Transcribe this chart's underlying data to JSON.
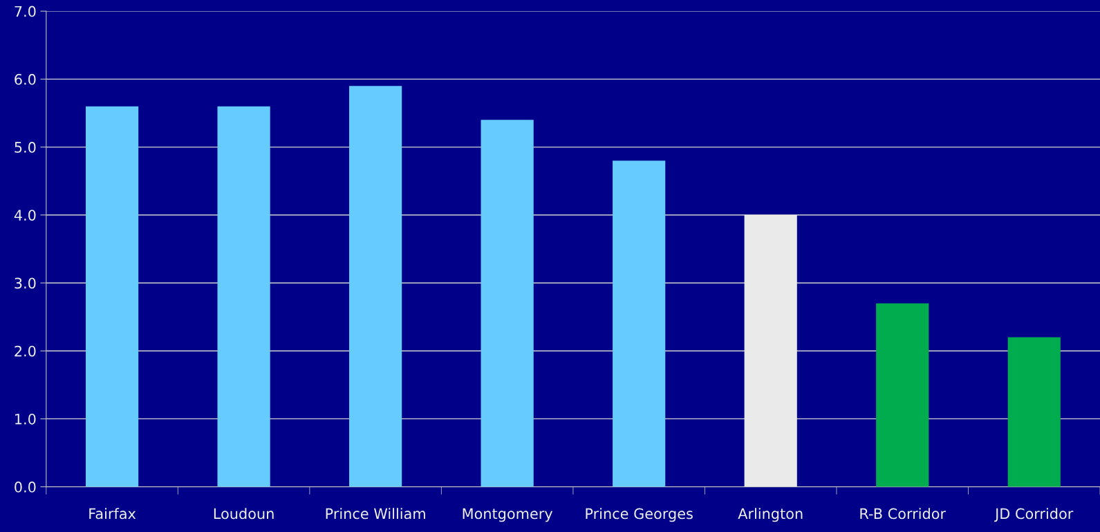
{
  "chart_data": {
    "type": "bar",
    "categories": [
      "Fairfax",
      "Loudoun",
      "Prince William",
      "Montgomery",
      "Prince Georges",
      "Arlington",
      "R-B Corridor",
      "JD Corridor"
    ],
    "values": [
      5.6,
      5.6,
      5.9,
      5.4,
      4.8,
      4.0,
      2.7,
      2.2
    ],
    "colors": [
      "#66ccff",
      "#66ccff",
      "#66ccff",
      "#66ccff",
      "#66ccff",
      "#eaeaea",
      "#00ac4e",
      "#00ac4e"
    ],
    "ylim": [
      0,
      7
    ],
    "yticks": [
      {
        "value": 0,
        "label": "0.0"
      },
      {
        "value": 1,
        "label": "1.0"
      },
      {
        "value": 2,
        "label": "2.0"
      },
      {
        "value": 3,
        "label": "3.0"
      },
      {
        "value": 4,
        "label": "4.0"
      },
      {
        "value": 5,
        "label": "5.0"
      },
      {
        "value": 6,
        "label": "6.0"
      },
      {
        "value": 7,
        "label": "7.0"
      }
    ],
    "grid": "y"
  }
}
